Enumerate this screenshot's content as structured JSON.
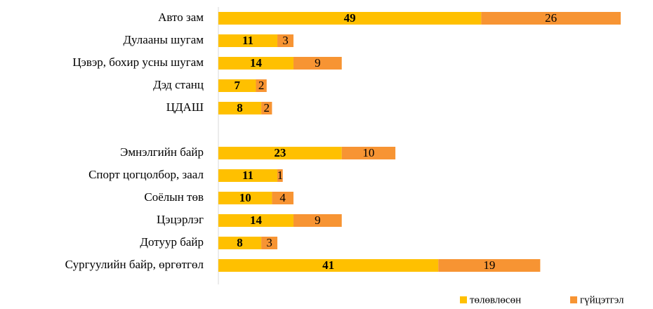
{
  "chart_data": {
    "type": "bar",
    "orientation": "horizontal",
    "stacked": true,
    "categories": [
      "Авто зам",
      "Дулааны шугам",
      "Цэвэр, бохир усны шугам",
      "Дэд станц",
      "ЦДАШ",
      null,
      "Эмнэлгийн байр",
      "Спорт цогцолбор, заал",
      "Соёлын төв",
      "Цэцэрлэг",
      "Дотуур байр",
      "Сургуулийн байр, өргөтгөл"
    ],
    "series": [
      {
        "name": "төлөвлөсөн",
        "color": "#ffc000",
        "values": [
          49,
          11,
          14,
          7,
          8,
          null,
          23,
          11,
          10,
          14,
          8,
          41
        ]
      },
      {
        "name": "гүйцэтгэл",
        "color": "#f79433",
        "values": [
          26,
          3,
          9,
          2,
          2,
          null,
          10,
          1,
          4,
          9,
          3,
          19
        ]
      }
    ],
    "xlim": [
      0,
      75
    ],
    "legend": "bottom-right"
  }
}
